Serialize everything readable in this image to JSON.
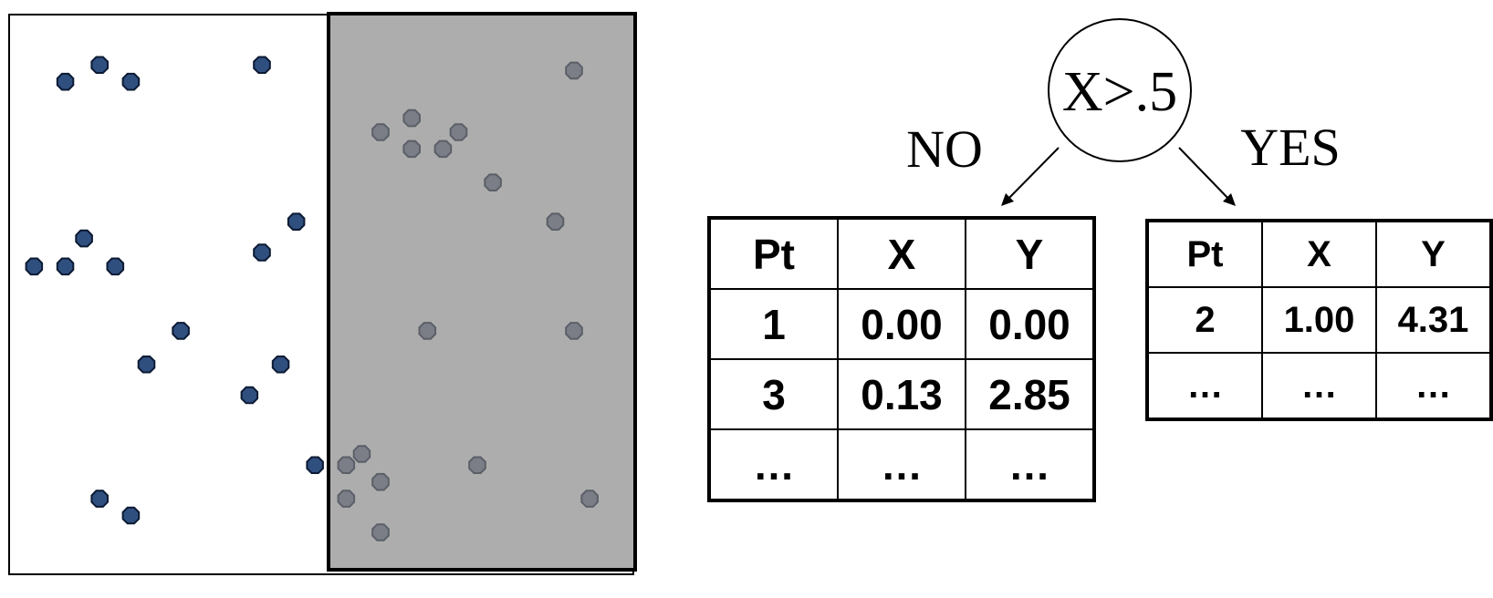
{
  "scatter": {
    "colors": {
      "left_point": "#2f4f7f",
      "left_point_stroke": "#0c1a33",
      "right_point": "#7b7e87",
      "right_point_stroke": "#5b5f67",
      "shaded_region": "#adadad"
    },
    "left_points": [
      [
        0.09,
        0.88
      ],
      [
        0.145,
        0.91
      ],
      [
        0.195,
        0.88
      ],
      [
        0.405,
        0.91
      ],
      [
        0.12,
        0.6
      ],
      [
        0.04,
        0.55
      ],
      [
        0.09,
        0.55
      ],
      [
        0.17,
        0.55
      ],
      [
        0.46,
        0.63
      ],
      [
        0.405,
        0.575
      ],
      [
        0.275,
        0.435
      ],
      [
        0.22,
        0.375
      ],
      [
        0.435,
        0.375
      ],
      [
        0.385,
        0.32
      ],
      [
        0.49,
        0.195
      ],
      [
        0.145,
        0.135
      ],
      [
        0.195,
        0.105
      ]
    ],
    "right_points": [
      [
        0.905,
        0.9
      ],
      [
        0.595,
        0.79
      ],
      [
        0.645,
        0.815
      ],
      [
        0.645,
        0.76
      ],
      [
        0.695,
        0.76
      ],
      [
        0.72,
        0.79
      ],
      [
        0.775,
        0.7
      ],
      [
        0.875,
        0.63
      ],
      [
        0.67,
        0.435
      ],
      [
        0.905,
        0.435
      ],
      [
        0.565,
        0.215
      ],
      [
        0.54,
        0.195
      ],
      [
        0.595,
        0.165
      ],
      [
        0.54,
        0.135
      ],
      [
        0.75,
        0.195
      ],
      [
        0.93,
        0.135
      ],
      [
        0.595,
        0.075
      ]
    ]
  },
  "tree": {
    "node_label": "X>.5",
    "no_label": "NO",
    "yes_label": "YES"
  },
  "no_table": {
    "headers": [
      "Pt",
      "X",
      "Y"
    ],
    "rows": [
      [
        "1",
        "0.00",
        "0.00"
      ],
      [
        "3",
        "0.13",
        "2.85"
      ],
      [
        "…",
        "…",
        "…"
      ]
    ]
  },
  "yes_table": {
    "headers": [
      "Pt",
      "X",
      "Y"
    ],
    "rows": [
      [
        "2",
        "1.00",
        "4.31"
      ],
      [
        "…",
        "…",
        "…"
      ]
    ]
  }
}
